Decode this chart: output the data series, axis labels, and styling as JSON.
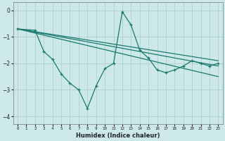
{
  "xlabel": "Humidex (Indice chaleur)",
  "bg_color": "#cce8e8",
  "line_color": "#1a7a6e",
  "grid_color": "#aacccc",
  "xlim": [
    -0.5,
    23.5
  ],
  "ylim": [
    -4.3,
    0.3
  ],
  "yticks": [
    0,
    -1,
    -2,
    -3,
    -4
  ],
  "xticks": [
    0,
    1,
    2,
    3,
    4,
    5,
    6,
    7,
    8,
    9,
    10,
    11,
    12,
    13,
    14,
    15,
    16,
    17,
    18,
    19,
    20,
    21,
    22,
    23
  ],
  "zigzag_x": [
    0,
    2,
    3,
    4,
    5,
    6,
    7,
    8,
    9,
    10,
    11,
    12,
    13,
    14,
    15,
    16,
    17,
    18,
    19,
    20,
    21,
    22,
    23
  ],
  "zigzag_y": [
    -0.7,
    -0.75,
    -1.55,
    -1.85,
    -2.4,
    -2.75,
    -3.0,
    -3.7,
    -2.85,
    -2.2,
    -2.0,
    -0.05,
    -0.55,
    -1.5,
    -1.8,
    -2.25,
    -2.35,
    -2.25,
    -2.1,
    -1.9,
    -2.0,
    -2.1,
    -2.0
  ],
  "line1_x": [
    0,
    23
  ],
  "line1_y": [
    -0.7,
    -1.9
  ],
  "line2_x": [
    0,
    23
  ],
  "line2_y": [
    -0.7,
    -2.5
  ],
  "line3_x": [
    0,
    23
  ],
  "line3_y": [
    -0.7,
    -2.1
  ]
}
